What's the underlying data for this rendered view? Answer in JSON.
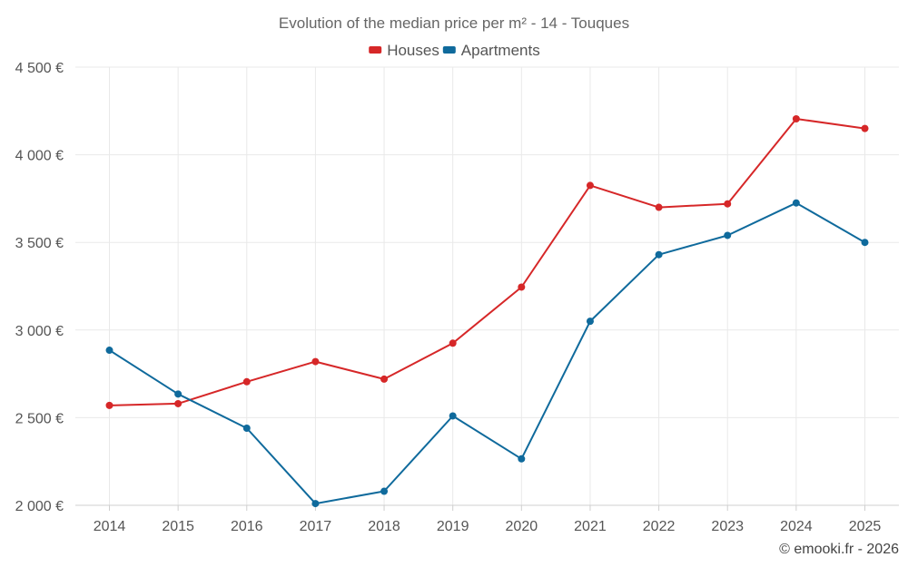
{
  "chart_data": {
    "type": "line",
    "title": "Evolution of the median price per m² - 14 - Touques",
    "categories": [
      "2014",
      "2015",
      "2016",
      "2017",
      "2018",
      "2019",
      "2020",
      "2021",
      "2022",
      "2023",
      "2024",
      "2025"
    ],
    "series": [
      {
        "name": "Houses",
        "color": "#d62728",
        "values": [
          2570,
          2580,
          2705,
          2820,
          2720,
          2925,
          3245,
          3825,
          3700,
          3720,
          4205,
          4150
        ]
      },
      {
        "name": "Apartments",
        "color": "#0f6a9c",
        "values": [
          2885,
          2635,
          2440,
          2010,
          2080,
          2510,
          2265,
          3050,
          3430,
          3540,
          3725,
          3500
        ]
      }
    ],
    "ylim": [
      2000,
      4500
    ],
    "yticks": [
      2000,
      2500,
      3000,
      3500,
      4000,
      4500
    ],
    "ytick_labels": [
      "2 000 €",
      "2 500 €",
      "3 000 €",
      "3 500 €",
      "4 000 €",
      "4 500 €"
    ],
    "xlabel": "",
    "ylabel": "",
    "legend_position": "top-center",
    "grid": true,
    "credit": "© emooki.fr - 2026"
  }
}
